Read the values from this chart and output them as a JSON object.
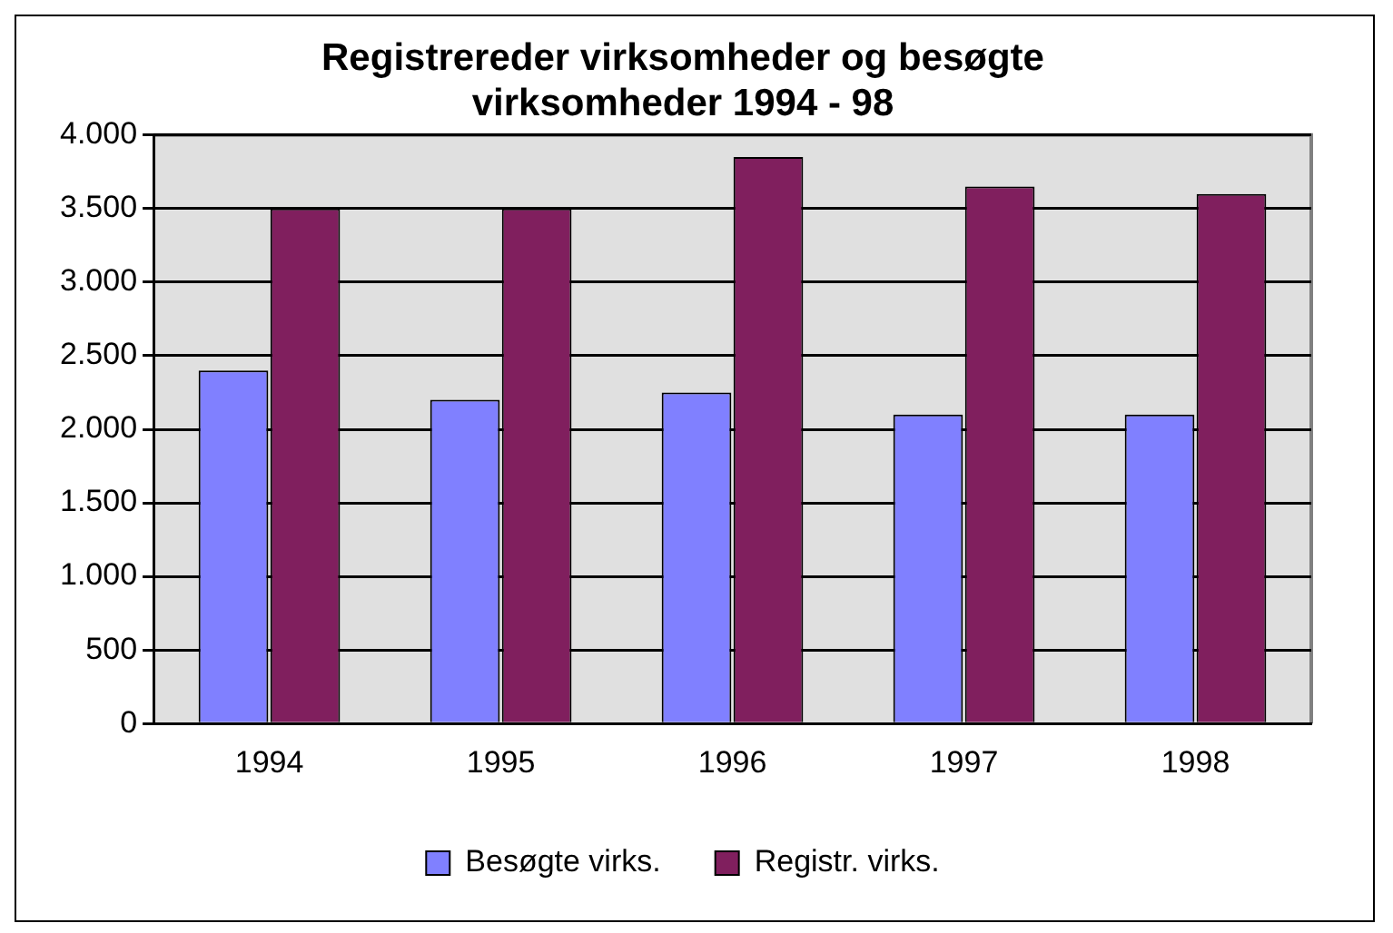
{
  "chart_data": {
    "type": "bar",
    "title": [
      "Registrereder virksomheder og besøgte",
      "virksomheder 1994 - 98"
    ],
    "categories": [
      "1994",
      "1995",
      "1996",
      "1997",
      "1998"
    ],
    "series": [
      {
        "name": "Besøgte virks.",
        "color": "#8080ff",
        "values": [
          2400,
          2200,
          2250,
          2100,
          2100
        ]
      },
      {
        "name": "Registr. virks.",
        "color": "#801f5e",
        "values": [
          3500,
          3500,
          3850,
          3650,
          3600
        ]
      }
    ],
    "ylim": [
      0,
      4000
    ],
    "yticks": [
      0,
      500,
      {
        "value": 1000,
        "label": "1.000"
      },
      {
        "value": 1500,
        "label": "1.500"
      },
      {
        "value": 2000,
        "label": "2.000"
      },
      {
        "value": 2500,
        "label": "2.500"
      },
      {
        "value": 3000,
        "label": "3.000"
      },
      {
        "value": 3500,
        "label": "3.500"
      },
      {
        "value": 4000,
        "label": "4.000"
      }
    ],
    "grid": "y",
    "legend": "bottom"
  }
}
